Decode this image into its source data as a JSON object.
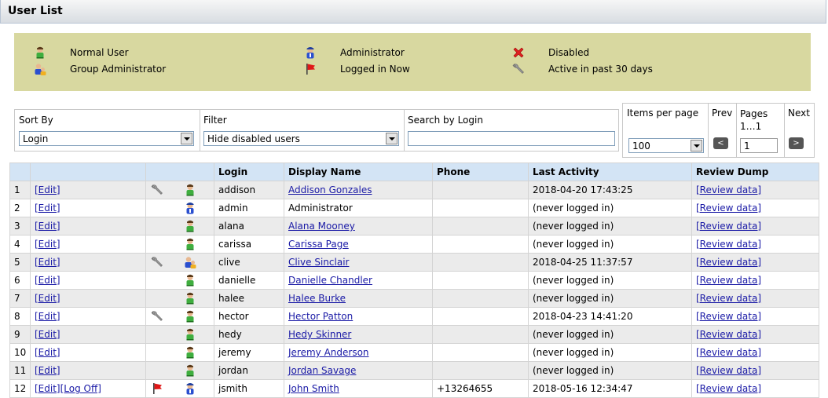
{
  "header": {
    "title": "User List"
  },
  "legend": [
    "Normal User",
    "Group Administrator",
    "Administrator",
    "Logged in Now",
    "Disabled",
    "Active in past 30 days"
  ],
  "controls": {
    "sort_by": {
      "label": "Sort By",
      "value": "Login"
    },
    "filter": {
      "label": "Filter",
      "value": "Hide disabled users"
    },
    "search": {
      "label": "Search by Login"
    },
    "items_per_page": {
      "label": "Items per page",
      "value": "100"
    },
    "prev": "Prev",
    "pages": {
      "label": "Pages",
      "range": "1…1",
      "value": "1"
    },
    "next": "Next"
  },
  "table": {
    "columns": [
      "Login",
      "Display Name",
      "Phone",
      "Last Activity",
      "Review Dump"
    ],
    "rows": [
      {
        "num": 1,
        "actions": [
          "[Edit]"
        ],
        "login": "addison",
        "display_name": "Addison Gonzales",
        "phone": null,
        "last_activity": "2018-04-20 17:43:25",
        "review": "[Review data]"
      },
      {
        "num": 2,
        "actions": [
          "[Edit]"
        ],
        "login": "admin",
        "display_name": "Administrator",
        "phone": null,
        "last_activity": "(never logged in)",
        "review": "[Review data]"
      },
      {
        "num": 3,
        "actions": [
          "[Edit]"
        ],
        "login": "alana",
        "display_name": "Alana Mooney",
        "phone": null,
        "last_activity": "(never logged in)",
        "review": "[Review data]"
      },
      {
        "num": 4,
        "actions": [
          "[Edit]"
        ],
        "login": "carissa",
        "display_name": "Carissa Page",
        "phone": null,
        "last_activity": "(never logged in)",
        "review": "[Review data]"
      },
      {
        "num": 5,
        "actions": [
          "[Edit]"
        ],
        "login": "clive",
        "display_name": "Clive Sinclair",
        "phone": null,
        "last_activity": "2018-04-25 11:37:57",
        "review": "[Review data]"
      },
      {
        "num": 6,
        "actions": [
          "[Edit]"
        ],
        "login": "danielle",
        "display_name": "Danielle Chandler",
        "phone": null,
        "last_activity": "(never logged in)",
        "review": "[Review data]"
      },
      {
        "num": 7,
        "actions": [
          "[Edit]"
        ],
        "login": "halee",
        "display_name": "Halee Burke",
        "phone": null,
        "last_activity": "(never logged in)",
        "review": "[Review data]"
      },
      {
        "num": 8,
        "actions": [
          "[Edit]"
        ],
        "login": "hector",
        "display_name": "Hector Patton",
        "phone": null,
        "last_activity": "2018-04-23 14:41:20",
        "review": "[Review data]"
      },
      {
        "num": 9,
        "actions": [
          "[Edit]"
        ],
        "login": "hedy",
        "display_name": "Hedy Skinner",
        "phone": null,
        "last_activity": "(never logged in)",
        "review": "[Review data]"
      },
      {
        "num": 10,
        "actions": [
          "[Edit]"
        ],
        "login": "jeremy",
        "display_name": "Jeremy Anderson",
        "phone": null,
        "last_activity": "(never logged in)",
        "review": "[Review data]"
      },
      {
        "num": 11,
        "actions": [
          "[Edit]"
        ],
        "login": "jordan",
        "display_name": "Jordan Savage",
        "phone": null,
        "last_activity": "(never logged in)",
        "review": "[Review data]"
      },
      {
        "num": 12,
        "actions": [
          "[Edit]",
          "[Log Off]"
        ],
        "login": "jsmith",
        "display_name": "John Smith",
        "phone": "+13264655",
        "last_activity": "2018-05-16 12:34:47",
        "review": "[Review data]"
      }
    ]
  }
}
